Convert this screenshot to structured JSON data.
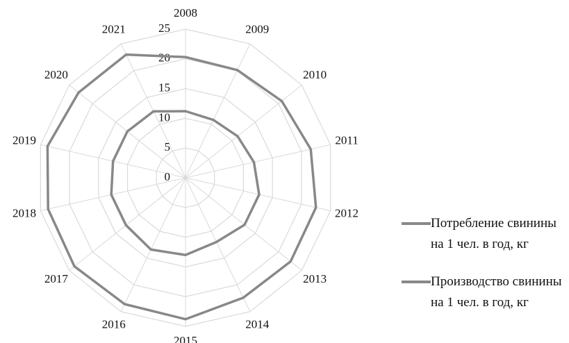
{
  "chart_data": {
    "type": "radar",
    "categories": [
      "2008",
      "2009",
      "2010",
      "2011",
      "2012",
      "2013",
      "2014",
      "2015",
      "2016",
      "2017",
      "2018",
      "2019",
      "2020",
      "2021"
    ],
    "series": [
      {
        "name": "Потребление свинины на 1 чел. в год, кг",
        "color": "#888888",
        "values": [
          11.2,
          10.8,
          11.2,
          11.8,
          12.7,
          12.7,
          12,
          13,
          13.4,
          12.8,
          12.8,
          12.5,
          12.5,
          12.4
        ]
      },
      {
        "name": "Производство свинины на 1 чел. в год, кг",
        "color": "#888888",
        "values": [
          20.3,
          20.1,
          20.7,
          21.6,
          22.5,
          22.6,
          22.4,
          23.8,
          23.6,
          23.9,
          23.7,
          23.8,
          23,
          23
        ]
      }
    ],
    "ylim": [
      0,
      25
    ],
    "yticks": [
      0,
      5,
      10,
      15,
      20,
      25
    ],
    "grid": true,
    "legend": "right"
  }
}
